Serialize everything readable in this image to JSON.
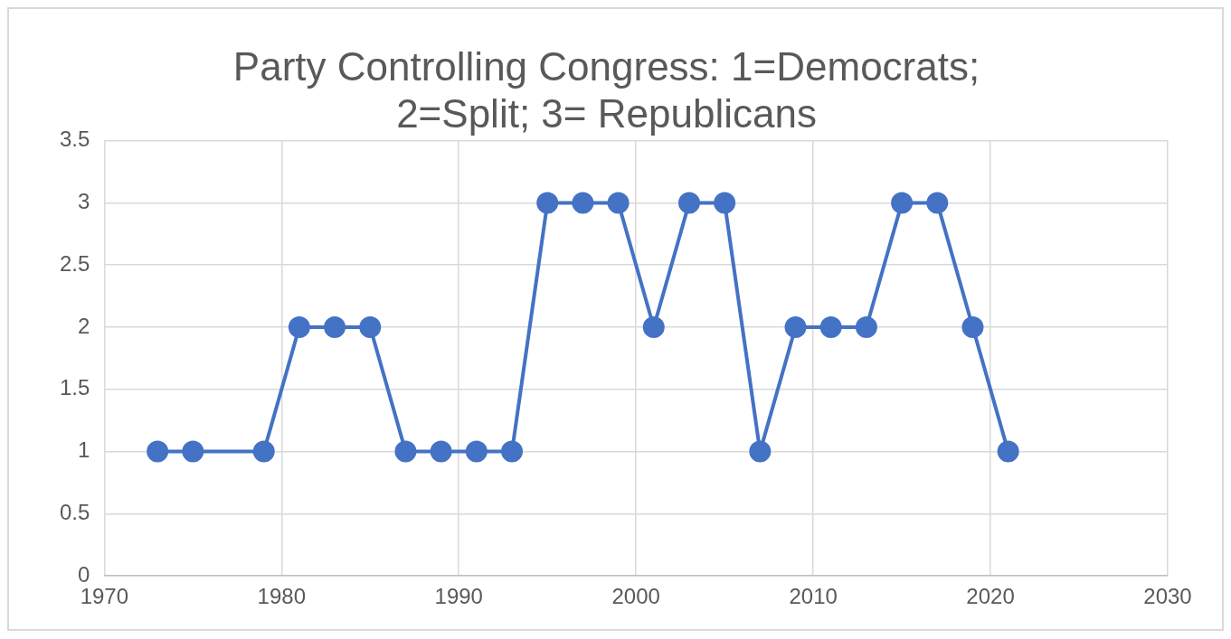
{
  "chart_data": {
    "type": "line",
    "title": "Party Controlling Congress: 1=Democrats; 2=Split; 3= Republicans",
    "x": [
      1973,
      1975,
      1979,
      1981,
      1983,
      1985,
      1987,
      1989,
      1991,
      1993,
      1995,
      1997,
      1999,
      2001,
      2003,
      2005,
      2007,
      2009,
      2011,
      2013,
      2015,
      2017,
      2019,
      2021
    ],
    "series": [
      {
        "color": "#4472c4",
        "values": [
          1,
          1,
          1,
          2,
          2,
          2,
          1,
          1,
          1,
          1,
          3,
          3,
          3,
          2,
          3,
          3,
          1,
          2,
          2,
          2,
          3,
          3,
          2,
          1
        ]
      }
    ],
    "xlim": [
      1970,
      2030
    ],
    "xticks": [
      1970,
      1980,
      1990,
      2000,
      2010,
      2020,
      2030
    ],
    "ylim": [
      0,
      3.5
    ],
    "yticks": [
      0,
      0.5,
      1,
      1.5,
      2,
      2.5,
      3,
      3.5
    ],
    "grid": true,
    "legend": false,
    "marker": "circle",
    "line_style": "solid"
  }
}
